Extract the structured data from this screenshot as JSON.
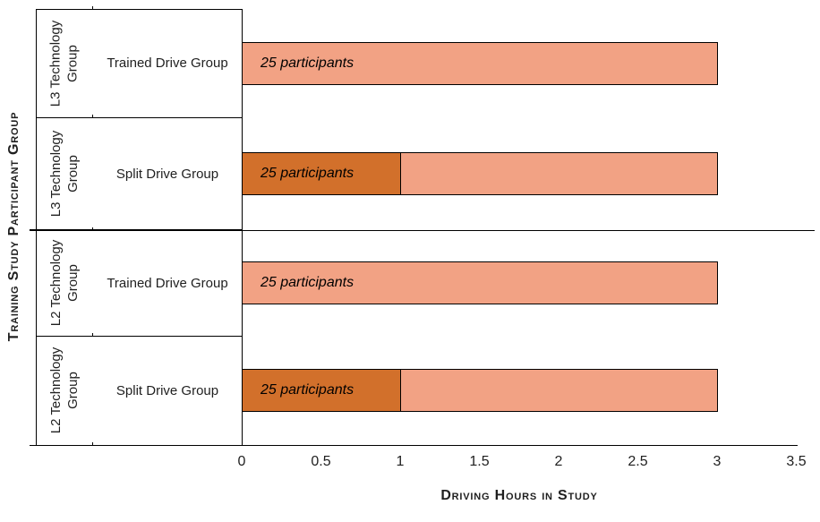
{
  "chart_data": {
    "type": "bar",
    "orientation": "horizontal",
    "title": "",
    "xlabel": "Driving Hours in Study",
    "ylabel": "Training Study Participant Group",
    "xlim": [
      0,
      3.5
    ],
    "x_tick_labels": [
      "0",
      "0.5",
      "1",
      "1.5",
      "2",
      "2.5",
      "3",
      "3.5"
    ],
    "grid": false,
    "legend": false,
    "rows": [
      {
        "group": "L3 Technology Group",
        "category": "Trained Drive Group",
        "total_hours": 3,
        "segments": [
          {
            "hours": 3,
            "style": "light",
            "label": "25 participants"
          }
        ]
      },
      {
        "group": "L3 Technology Group",
        "category": "Split Drive Group",
        "total_hours": 3,
        "segments": [
          {
            "hours": 1,
            "style": "dark",
            "label": "25 participants"
          },
          {
            "hours": 2,
            "style": "light",
            "label": ""
          }
        ]
      },
      {
        "group": "L2 Technology Group",
        "category": "Trained Drive Group",
        "total_hours": 3,
        "segments": [
          {
            "hours": 3,
            "style": "light",
            "label": "25 participants"
          }
        ]
      },
      {
        "group": "L2 Technology Group",
        "category": "Split Drive Group",
        "total_hours": 3,
        "segments": [
          {
            "hours": 1,
            "style": "dark",
            "label": "25 participants"
          },
          {
            "hours": 2,
            "style": "light",
            "label": ""
          }
        ]
      }
    ],
    "colors": {
      "bar_light": "#F2A284",
      "bar_dark": "#D2702B",
      "bar_border": "#000000",
      "axis_line": "#000000",
      "text": "#1F1F1F"
    }
  }
}
